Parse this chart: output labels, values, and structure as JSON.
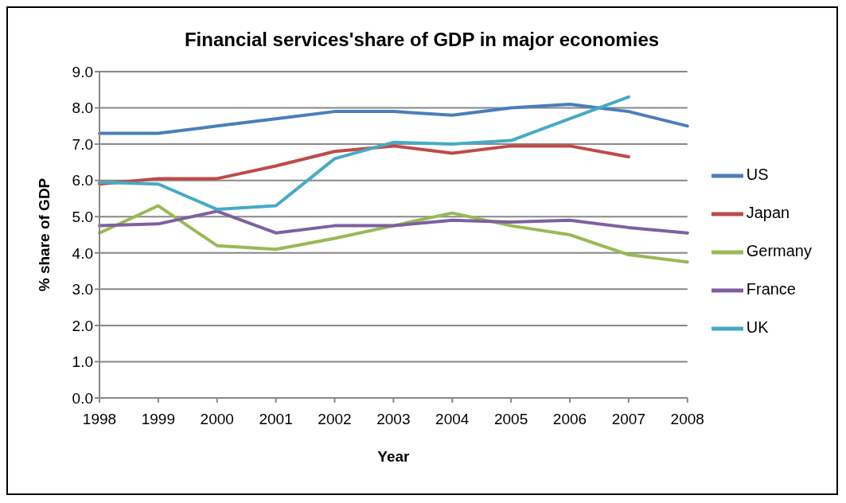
{
  "chart_data": {
    "type": "line",
    "title": "Financial services'share of GDP in major economies",
    "xlabel": "Year",
    "ylabel": "% share of GDP",
    "categories": [
      "1998",
      "1999",
      "2000",
      "2001",
      "2002",
      "2003",
      "2004",
      "2005",
      "2006",
      "2007",
      "2008"
    ],
    "series": [
      {
        "name": "US",
        "color": "#4a7ebb",
        "values": [
          7.3,
          7.3,
          7.5,
          7.7,
          7.9,
          7.9,
          7.8,
          8.0,
          8.1,
          7.9,
          7.5
        ]
      },
      {
        "name": "Japan",
        "color": "#be4b48",
        "values": [
          5.9,
          6.05,
          6.05,
          6.4,
          6.8,
          6.95,
          6.75,
          6.95,
          6.95,
          6.65,
          null
        ]
      },
      {
        "name": "Germany",
        "color": "#98b954",
        "values": [
          4.55,
          5.3,
          4.2,
          4.1,
          4.4,
          4.75,
          5.1,
          4.75,
          4.5,
          3.95,
          3.75
        ]
      },
      {
        "name": "France",
        "color": "#7d60a0",
        "values": [
          4.75,
          4.8,
          5.15,
          4.55,
          4.75,
          4.75,
          4.9,
          4.85,
          4.9,
          4.7,
          4.55
        ]
      },
      {
        "name": "UK",
        "color": "#46aac5",
        "values": [
          5.95,
          5.9,
          5.2,
          5.3,
          6.6,
          7.05,
          7.0,
          7.1,
          7.7,
          8.3,
          null
        ]
      }
    ],
    "ylim": [
      0,
      9
    ],
    "yticks": [
      {
        "value": 0,
        "label": "0.0"
      },
      {
        "value": 1,
        "label": "1.0"
      },
      {
        "value": 2,
        "label": "2.0"
      },
      {
        "value": 3,
        "label": "3.0"
      },
      {
        "value": 4,
        "label": "4.0"
      },
      {
        "value": 5,
        "label": "5.0"
      },
      {
        "value": 6,
        "label": "6.0"
      },
      {
        "value": 7,
        "label": "7.0"
      },
      {
        "value": 8,
        "label": "8.0"
      },
      {
        "value": 9,
        "label": "9.0"
      }
    ],
    "grid": "y",
    "legend": "right",
    "marker": "none",
    "line_style": "solid"
  }
}
